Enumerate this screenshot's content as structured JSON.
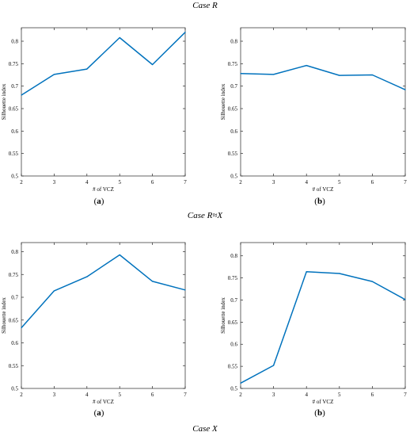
{
  "headings": {
    "top": "Case R",
    "middle": "Case R≈X",
    "bottom": "Case X"
  },
  "chart_data": [
    {
      "id": "case-r-a",
      "type": "line",
      "panel_label": "a",
      "xlabel": "# of VCZ",
      "ylabel": "Silhouette index",
      "x": [
        2,
        3,
        4,
        5,
        6,
        7
      ],
      "y": [
        0.68,
        0.726,
        0.738,
        0.808,
        0.748,
        0.82
      ],
      "xlim": [
        2,
        7
      ],
      "ylim": [
        0.5,
        0.83
      ],
      "xticks": [
        "2",
        "3",
        "4",
        "5",
        "6",
        "7"
      ],
      "yticks": [
        "0.5",
        "0.55",
        "0.6",
        "0.65",
        "0.7",
        "0.75",
        "0.8"
      ],
      "grid": false,
      "line_color": "#0072BD"
    },
    {
      "id": "case-r-b",
      "type": "line",
      "panel_label": "b",
      "xlabel": "# of VCZ",
      "ylabel": "Silhouette index",
      "x": [
        2,
        3,
        4,
        5,
        6,
        7
      ],
      "y": [
        0.728,
        0.726,
        0.746,
        0.724,
        0.725,
        0.692
      ],
      "xlim": [
        2,
        7
      ],
      "ylim": [
        0.5,
        0.83
      ],
      "xticks": [
        "2",
        "3",
        "4",
        "5",
        "6",
        "7"
      ],
      "yticks": [
        "0.5",
        "0.55",
        "0.6",
        "0.65",
        "0.7",
        "0.75",
        "0.8"
      ],
      "grid": false,
      "line_color": "#0072BD"
    },
    {
      "id": "case-rx-a",
      "type": "line",
      "panel_label": "a",
      "xlabel": "# of VCZ",
      "ylabel": "Silhouette index",
      "x": [
        2,
        3,
        4,
        5,
        6,
        7
      ],
      "y": [
        0.633,
        0.714,
        0.745,
        0.793,
        0.735,
        0.716
      ],
      "xlim": [
        2,
        7
      ],
      "ylim": [
        0.5,
        0.82
      ],
      "xticks": [
        "2",
        "3",
        "4",
        "5",
        "6",
        "7"
      ],
      "yticks": [
        "0.5",
        "0.55",
        "0.6",
        "0.65",
        "0.7",
        "0.75",
        "0.8"
      ],
      "grid": false,
      "line_color": "#0072BD"
    },
    {
      "id": "case-rx-b",
      "type": "line",
      "panel_label": "b",
      "xlabel": "# of VCZ",
      "ylabel": "Silhouette index",
      "x": [
        2,
        3,
        4,
        5,
        6,
        7
      ],
      "y": [
        0.512,
        0.552,
        0.764,
        0.76,
        0.742,
        0.701
      ],
      "xlim": [
        2,
        7
      ],
      "ylim": [
        0.5,
        0.83
      ],
      "xticks": [
        "2",
        "3",
        "4",
        "5",
        "6",
        "7"
      ],
      "yticks": [
        "0.5",
        "0.55",
        "0.6",
        "0.65",
        "0.7",
        "0.75",
        "0.8"
      ],
      "grid": false,
      "line_color": "#0072BD"
    }
  ]
}
